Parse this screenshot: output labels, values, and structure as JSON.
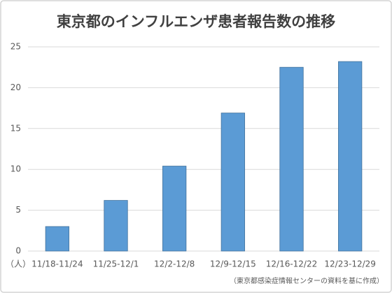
{
  "chart_data": {
    "type": "bar",
    "title": "東京都のインフルエンザ患者報告数の推移",
    "y_unit_label": "（人）",
    "source": "（東京都感染症情報センターの資料を基に作成）",
    "categories": [
      "11/18-11/24",
      "11/25-12/1",
      "12/2-12/8",
      "12/9-12/15",
      "12/16-12/22",
      "12/23-12/29"
    ],
    "values": [
      3.0,
      6.2,
      10.4,
      16.9,
      22.5,
      23.2
    ],
    "color": "#5b9bd5",
    "ylim": [
      0,
      25
    ],
    "yticks": [
      0,
      5,
      10,
      15,
      20,
      25
    ],
    "grid": true
  }
}
